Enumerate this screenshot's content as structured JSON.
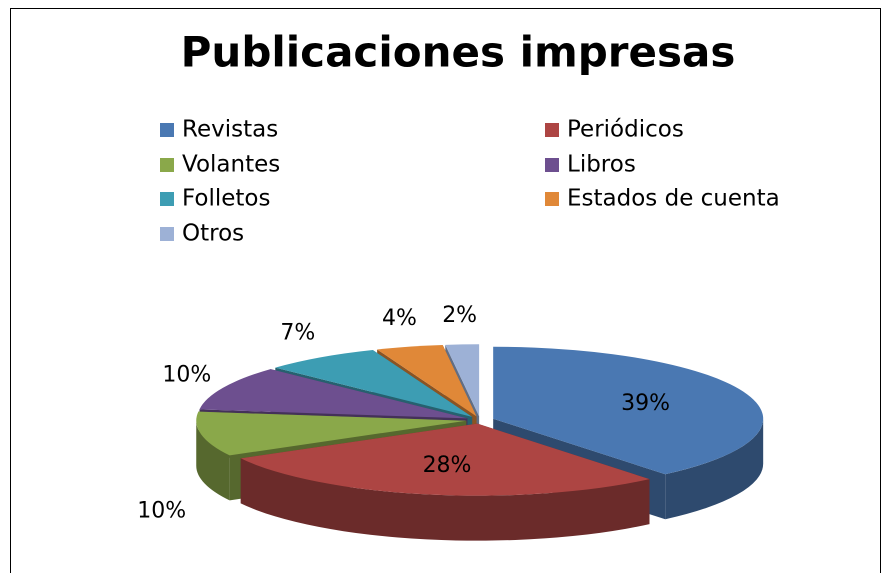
{
  "chart_data": {
    "type": "pie",
    "title": "Publicaciones impresas",
    "categories": [
      "Revistas",
      "Periódicos",
      "Volantes",
      "Libros",
      "Folletos",
      "Estados de cuenta",
      "Otros"
    ],
    "values": [
      39,
      28,
      10,
      10,
      7,
      4,
      2
    ],
    "value_labels": [
      "39%",
      "28%",
      "10%",
      "10%",
      "7%",
      "4%",
      "2%"
    ],
    "colors": [
      "#4a78b2",
      "#ad4543",
      "#8aa84a",
      "#6d4f8f",
      "#3d9db3",
      "#e08838",
      "#9db1d6"
    ],
    "legend": "top"
  }
}
